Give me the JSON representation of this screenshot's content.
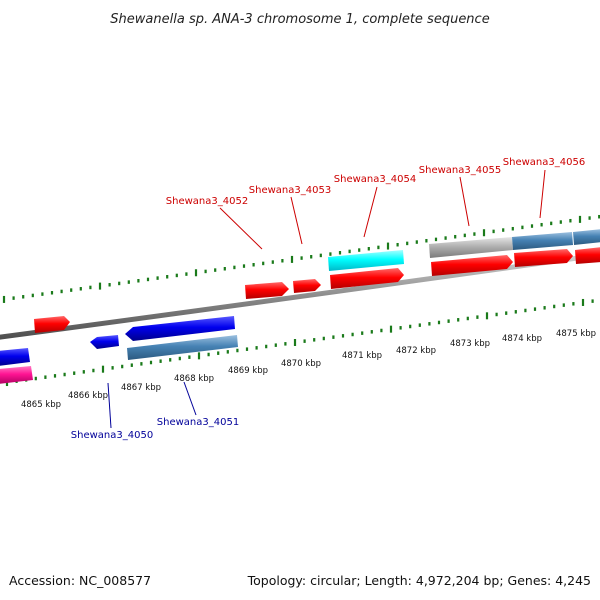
{
  "title": "Shewanella sp. ANA-3 chromosome 1, complete sequence",
  "footer": {
    "accession": "Accession: NC_008577",
    "topology": "Topology: circular; Length: 4,972,204 bp; Genes: 4,245"
  },
  "colors": {
    "forward_cds": "#ff0000",
    "reverse_cds": "#0000ee",
    "forward_highlight": "#00ffff",
    "reverse_alt": "#ff1493",
    "forward_gene_bar": "#b0b0b0",
    "reverse_gene_bar": "#4682b4",
    "backbone": "#888888",
    "ticks": "#1a7a1a",
    "forward_label": "#cc0000",
    "reverse_label": "#000099"
  },
  "tick_labels": [
    "4865 kbp",
    "4866 kbp",
    "4867 kbp",
    "4868 kbp",
    "4869 kbp",
    "4870 kbp",
    "4871 kbp",
    "4872 kbp",
    "4873 kbp",
    "4874 kbp",
    "4875 kbp"
  ],
  "gene_labels": [
    {
      "text": "Shewana3_4050",
      "strand": "reverse"
    },
    {
      "text": "Shewana3_4051",
      "strand": "reverse"
    },
    {
      "text": "Shewana3_4052",
      "strand": "forward"
    },
    {
      "text": "Shewana3_4053",
      "strand": "forward"
    },
    {
      "text": "Shewana3_4054",
      "strand": "forward"
    },
    {
      "text": "Shewana3_4055",
      "strand": "forward"
    },
    {
      "text": "Shewana3_4056",
      "strand": "forward"
    }
  ]
}
